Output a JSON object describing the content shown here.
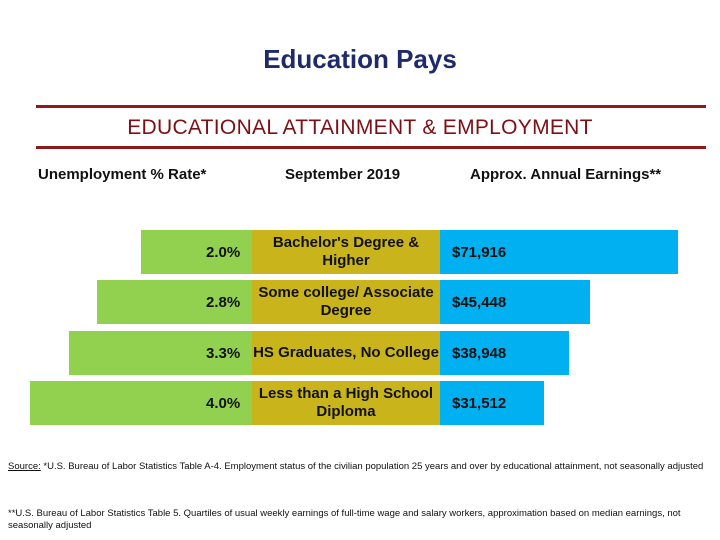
{
  "title": "Education Pays",
  "subtitle": "EDUCATIONAL ATTAINMENT & EMPLOYMENT",
  "column_headers": {
    "unemployment": "Unemployment % Rate*",
    "period": "September 2019",
    "earnings": "Approx. Annual Earnings**"
  },
  "colors": {
    "title": "#1f2a6b",
    "rule": "#8b1a1a",
    "subtitle": "#7b1015",
    "unemployment_bar": "#92d050",
    "category_box": "#c9b41b",
    "earnings_bar": "#00b0f0"
  },
  "chart_data": {
    "type": "bar",
    "categories": [
      "Bachelor's Degree & Higher",
      "Some college/ Associate Degree",
      "HS Graduates, No College",
      "Less than a High School Diploma"
    ],
    "series": [
      {
        "name": "Unemployment % Rate*",
        "values": [
          2.0,
          2.8,
          3.3,
          4.0
        ],
        "labels": [
          "2.0%",
          "2.8%",
          "3.3%",
          "4.0%"
        ]
      },
      {
        "name": "Approx. Annual Earnings**",
        "values": [
          71916,
          45448,
          38948,
          31512
        ],
        "labels": [
          "$71,916",
          "$45,448",
          "$38,948",
          "$31,512"
        ]
      }
    ]
  },
  "rows": [
    {
      "rate": "2.0%",
      "category": "Bachelor's Degree & Higher",
      "earnings": "$71,916"
    },
    {
      "rate": "2.8%",
      "category": "Some college/ Associate Degree",
      "earnings": "$45,448"
    },
    {
      "rate": "3.3%",
      "category": "HS Graduates, No College",
      "earnings": "$38,948"
    },
    {
      "rate": "4.0%",
      "category": "Less than a High School Diploma",
      "earnings": "$31,512"
    }
  ],
  "sources": {
    "label": "Source:",
    "note1": " *U.S. Bureau of Labor Statistics Table A-4. Employment status of the civilian population 25 years and over by educational attainment, not seasonally adjusted",
    "note2": "**U.S. Bureau of Labor Statistics Table 5. Quartiles of usual weekly earnings of full-time wage and salary workers, approximation based on median earnings, not seasonally adjusted"
  }
}
